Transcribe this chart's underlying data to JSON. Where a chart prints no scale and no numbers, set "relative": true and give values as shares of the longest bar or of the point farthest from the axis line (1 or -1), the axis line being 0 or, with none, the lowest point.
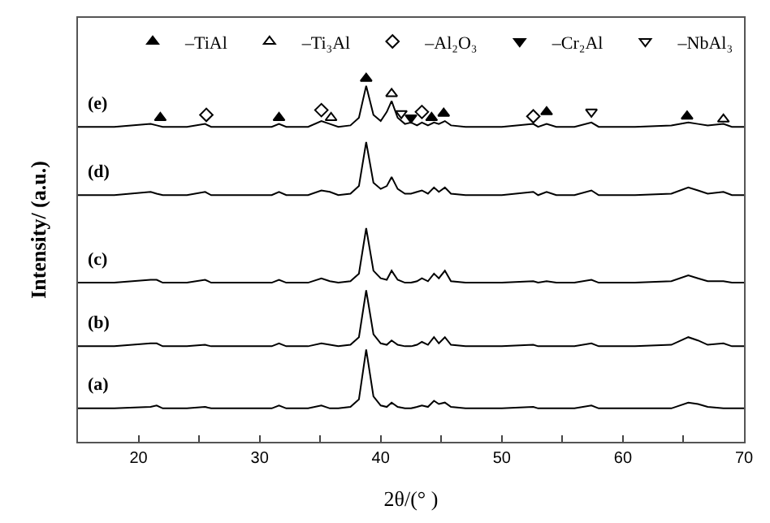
{
  "chart_data": {
    "type": "line",
    "relative": true,
    "xlabel": "2θ/(° )",
    "ylabel": "Intensity/ (a.u.)",
    "x": [
      15,
      18,
      21,
      21.5,
      22,
      24,
      25.5,
      26,
      29,
      31,
      31.6,
      32.2,
      34,
      35.1,
      35.8,
      36.5,
      37.5,
      38.2,
      38.8,
      39.4,
      40,
      40.5,
      40.9,
      41.4,
      42,
      42.5,
      43,
      43.4,
      43.9,
      44.4,
      44.8,
      45.3,
      45.8,
      47,
      50,
      52.6,
      53,
      53.7,
      54.5,
      56,
      57.4,
      58,
      61,
      64,
      65.4,
      66.2,
      67,
      68.3,
      69,
      70
    ],
    "xlim": [
      15,
      70
    ],
    "xticks": [
      20,
      {
        "value": 25,
        "label": null
      },
      30,
      {
        "value": 35,
        "label": null
      },
      40,
      {
        "value": 45,
        "label": null
      },
      50,
      {
        "value": 55,
        "label": null
      },
      60,
      {
        "value": 65,
        "label": null
      },
      70
    ],
    "tick_labels": "x",
    "legend": "top right",
    "series": [
      {
        "name": "(a)",
        "color": "#000000",
        "values": [
          0.092,
          0.092,
          0.096,
          0.1,
          0.092,
          0.092,
          0.096,
          0.092,
          0.092,
          0.092,
          0.1,
          0.092,
          0.092,
          0.1,
          0.092,
          0.092,
          0.096,
          0.117,
          0.254,
          0.125,
          0.1,
          0.096,
          0.108,
          0.096,
          0.092,
          0.092,
          0.096,
          0.1,
          0.096,
          0.113,
          0.104,
          0.108,
          0.096,
          0.092,
          0.092,
          0.096,
          0.092,
          0.092,
          0.092,
          0.092,
          0.1,
          0.092,
          0.092,
          0.092,
          0.108,
          0.104,
          0.096,
          0.092,
          0.092,
          0.092
        ]
      },
      {
        "name": "(b)",
        "color": "#000000",
        "values": [
          0.263,
          0.263,
          0.271,
          0.271,
          0.263,
          0.263,
          0.267,
          0.263,
          0.263,
          0.263,
          0.271,
          0.263,
          0.263,
          0.271,
          0.267,
          0.263,
          0.267,
          0.288,
          0.417,
          0.296,
          0.271,
          0.267,
          0.279,
          0.267,
          0.263,
          0.263,
          0.267,
          0.275,
          0.267,
          0.288,
          0.271,
          0.288,
          0.267,
          0.263,
          0.263,
          0.267,
          0.263,
          0.263,
          0.263,
          0.263,
          0.271,
          0.263,
          0.263,
          0.267,
          0.288,
          0.279,
          0.267,
          0.271,
          0.263,
          0.263
        ]
      },
      {
        "name": "(c)",
        "color": "#000000",
        "values": [
          0.438,
          0.438,
          0.446,
          0.446,
          0.438,
          0.438,
          0.446,
          0.438,
          0.438,
          0.438,
          0.446,
          0.438,
          0.438,
          0.45,
          0.442,
          0.438,
          0.442,
          0.463,
          0.588,
          0.471,
          0.45,
          0.446,
          0.471,
          0.446,
          0.438,
          0.438,
          0.442,
          0.45,
          0.442,
          0.463,
          0.45,
          0.471,
          0.442,
          0.438,
          0.438,
          0.442,
          0.438,
          0.442,
          0.438,
          0.438,
          0.446,
          0.438,
          0.438,
          0.442,
          0.458,
          0.45,
          0.442,
          0.442,
          0.438,
          0.438
        ]
      },
      {
        "name": "(d)",
        "color": "#000000",
        "values": [
          0.679,
          0.679,
          0.688,
          0.683,
          0.679,
          0.679,
          0.688,
          0.679,
          0.679,
          0.679,
          0.688,
          0.679,
          0.679,
          0.692,
          0.688,
          0.679,
          0.683,
          0.704,
          0.825,
          0.713,
          0.696,
          0.704,
          0.729,
          0.696,
          0.683,
          0.683,
          0.688,
          0.692,
          0.683,
          0.7,
          0.688,
          0.7,
          0.683,
          0.679,
          0.679,
          0.688,
          0.679,
          0.688,
          0.679,
          0.679,
          0.692,
          0.679,
          0.679,
          0.683,
          0.7,
          0.692,
          0.683,
          0.688,
          0.679,
          0.679
        ]
      },
      {
        "name": "(e)",
        "color": "#000000",
        "values": [
          0.867,
          0.867,
          0.875,
          0.871,
          0.867,
          0.867,
          0.875,
          0.867,
          0.867,
          0.867,
          0.875,
          0.867,
          0.867,
          0.883,
          0.875,
          0.867,
          0.871,
          0.892,
          0.98,
          0.9,
          0.883,
          0.908,
          0.938,
          0.892,
          0.875,
          0.879,
          0.871,
          0.879,
          0.871,
          0.879,
          0.875,
          0.883,
          0.871,
          0.867,
          0.867,
          0.875,
          0.867,
          0.875,
          0.867,
          0.867,
          0.879,
          0.867,
          0.867,
          0.871,
          0.879,
          0.875,
          0.871,
          0.875,
          0.867,
          0.867
        ]
      },
      {
        "name": "–TiAl",
        "type": "scatter",
        "marker": "triangle-up",
        "color": "#000000",
        "x": [
          21.8,
          31.6,
          38.8,
          44.2,
          45.2,
          53.7,
          65.3
        ],
        "values": [
          0.892,
          0.892,
          1,
          0.892,
          0.904,
          0.908,
          0.896
        ]
      },
      {
        "name": "–Ti₃Al",
        "type": "scatter",
        "marker": "triangle-up-open",
        "color": "#000000",
        "x": [
          35.9,
          40.9,
          68.3
        ],
        "values": [
          0.892,
          0.958,
          0.888
        ]
      },
      {
        "name": "–Al₂O₃",
        "type": "scatter",
        "marker": "diamond-open",
        "color": "#000000",
        "x": [
          25.6,
          35.1,
          43.4,
          52.6
        ],
        "values": [
          0.9,
          0.913,
          0.908,
          0.896
        ]
      },
      {
        "name": "–Cr₂Al",
        "type": "scatter",
        "marker": "triangle-down",
        "color": "#000000",
        "x": [
          42.5
        ],
        "values": [
          0.892
        ]
      },
      {
        "name": "–NbAl₃",
        "type": "scatter",
        "marker": "triangle-down-open",
        "color": "#000000",
        "x": [
          41.7,
          57.4
        ],
        "values": [
          0.904,
          0.908
        ]
      }
    ]
  }
}
